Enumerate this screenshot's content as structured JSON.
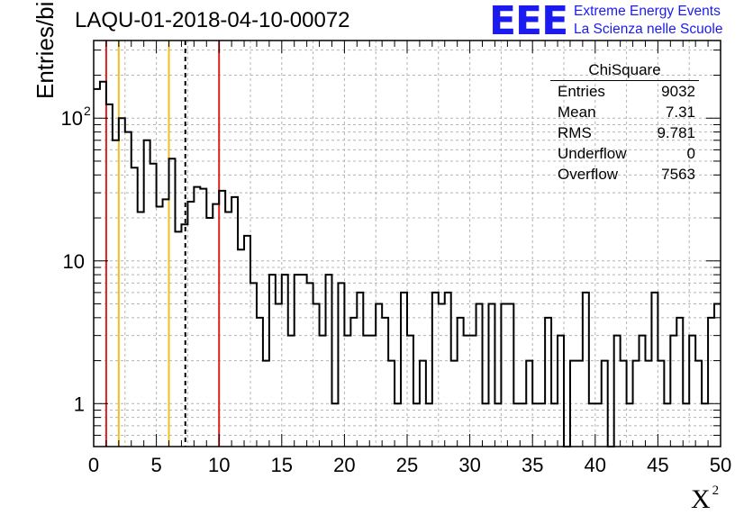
{
  "title": "LAQU-01-2018-04-10-00072",
  "logo": {
    "mark": "EEE",
    "line1": "Extreme Energy Events",
    "line2": "La Scienza nelle Scuole"
  },
  "stats_box": {
    "title": "ChiSquare",
    "rows": [
      {
        "label": "Entries",
        "value": "9032"
      },
      {
        "label": "Mean",
        "value": "7.31"
      },
      {
        "label": "RMS",
        "value": "9.781"
      },
      {
        "label": "Underflow",
        "value": "0"
      },
      {
        "label": "Overflow",
        "value": "7563"
      }
    ]
  },
  "chart_data": {
    "type": "histogram",
    "xlabel": "Χ",
    "xlabel_sup": "2",
    "ylabel": "Entries/bin",
    "xlim": [
      0,
      50
    ],
    "ylim": [
      0.5,
      350
    ],
    "log_y": true,
    "grid": true,
    "bin_width": 0.5,
    "x_ticks": [
      0,
      5,
      10,
      15,
      20,
      25,
      30,
      35,
      40,
      45,
      50
    ],
    "x_tick_labels": [
      "0",
      "5",
      "10",
      "15",
      "20",
      "25",
      "30",
      "35",
      "40",
      "45",
      "50"
    ],
    "y_ticks": [
      1,
      10,
      100
    ],
    "y_tick_labels": [
      "1",
      "10",
      "10",
      "2"
    ],
    "y_tick_label_parts": [
      {
        "base": "1",
        "exp": ""
      },
      {
        "base": "10",
        "exp": ""
      },
      {
        "base": "10",
        "exp": "2"
      }
    ],
    "values": [
      160,
      180,
      125,
      70,
      100,
      80,
      45,
      22,
      70,
      48,
      24,
      27,
      52,
      16,
      18,
      26,
      33,
      32,
      20,
      25,
      31,
      22,
      28,
      12,
      15,
      7,
      4,
      2,
      8,
      5,
      8,
      3,
      8,
      8,
      7,
      5,
      3,
      8,
      1,
      7,
      3,
      4,
      6,
      3,
      3,
      5,
      4,
      2,
      1,
      6,
      3,
      1,
      2,
      1,
      6,
      5,
      6,
      2,
      4,
      3,
      3,
      5,
      1,
      5,
      1,
      5,
      5,
      1,
      1,
      2,
      1,
      1,
      4,
      1,
      3,
      0.5,
      2,
      2,
      6,
      1,
      1,
      2,
      0.5,
      3,
      2,
      1,
      2,
      3,
      2,
      6,
      2,
      1,
      3,
      4,
      1,
      3,
      2,
      1,
      4,
      5
    ],
    "vlines": [
      {
        "x": 1,
        "color": "#dd2020",
        "style": "solid"
      },
      {
        "x": 2,
        "color": "#f0c020",
        "style": "solid"
      },
      {
        "x": 6,
        "color": "#f0c020",
        "style": "solid"
      },
      {
        "x": 7.31,
        "color": "#000000",
        "style": "dashed"
      },
      {
        "x": 10,
        "color": "#dd2020",
        "style": "solid"
      }
    ]
  }
}
